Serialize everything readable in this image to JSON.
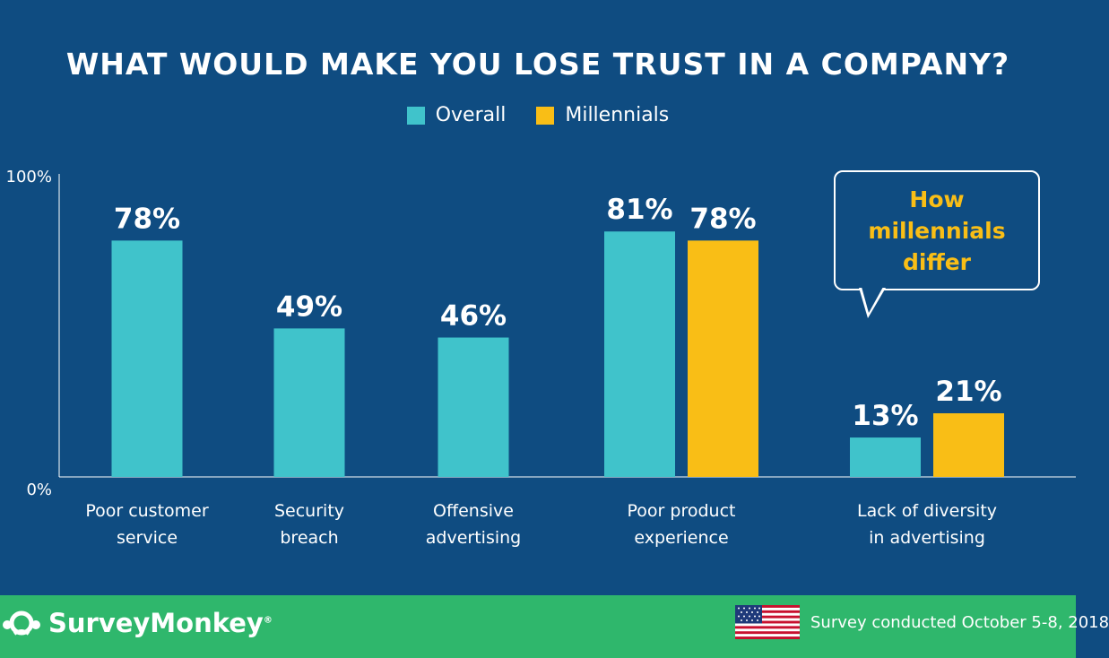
{
  "colors": {
    "background": "#0f4c81",
    "overall": "#40c3cb",
    "millennials": "#f9be16",
    "text": "#ffffff",
    "footer": "#2fb76c"
  },
  "callout": {
    "lines": [
      "How",
      "millennials",
      "differ"
    ]
  },
  "footer": {
    "brand": "SurveyMonkey",
    "brand_mark": "®",
    "logo_icon": "monkey-logo-icon",
    "flag_icon": "us-flag-icon",
    "note": "Survey conducted October 5-8, 2018"
  },
  "chart_data": {
    "type": "bar",
    "title": "WHAT WOULD MAKE YOU LOSE TRUST IN A COMPANY?",
    "legend_placement": "top-center",
    "grid": false,
    "ylim": [
      0,
      100
    ],
    "ytick_labels": [
      "100%",
      "0%"
    ],
    "categories": [
      [
        "Poor customer",
        "service"
      ],
      [
        "Security",
        "breach"
      ],
      [
        "Offensive",
        "advertising"
      ],
      [
        "Poor product",
        "experience"
      ],
      [
        "Lack of diversity",
        "in advertising"
      ]
    ],
    "series": [
      {
        "name": "Overall",
        "color": "#40c3cb",
        "values": [
          78,
          49,
          46,
          81,
          13
        ],
        "labels": [
          "78%",
          "49%",
          "46%",
          "81%",
          "13%"
        ]
      },
      {
        "name": "Millennials",
        "color": "#f9be16",
        "values": [
          null,
          null,
          null,
          78,
          21
        ],
        "labels": [
          null,
          null,
          null,
          "78%",
          "21%"
        ]
      }
    ]
  }
}
